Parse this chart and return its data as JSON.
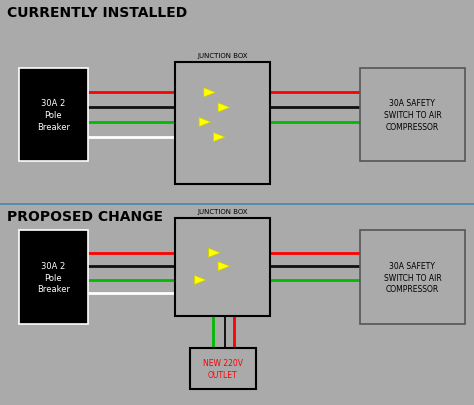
{
  "bg_color": "#aaaaaa",
  "title1": "CURRENTLY INSTALLED",
  "title2": "PROPOSED CHANGE",
  "junction_box_label": "JUNCTION BOX",
  "breaker_label": "30A 2\nPole\nBreaker",
  "compressor_label": "30A SAFETY\nSWITCH TO AIR\nCOMPRESSOR",
  "outlet_label": "NEW 220V\nOUTLET",
  "wire_colors": [
    "#ff0000",
    "#111111",
    "#00bb00",
    "#ffffff"
  ],
  "wire_lw": 2.0,
  "divider_color": "#4488aa",
  "title_fontsize": 10,
  "label_fontsize": 6.0
}
